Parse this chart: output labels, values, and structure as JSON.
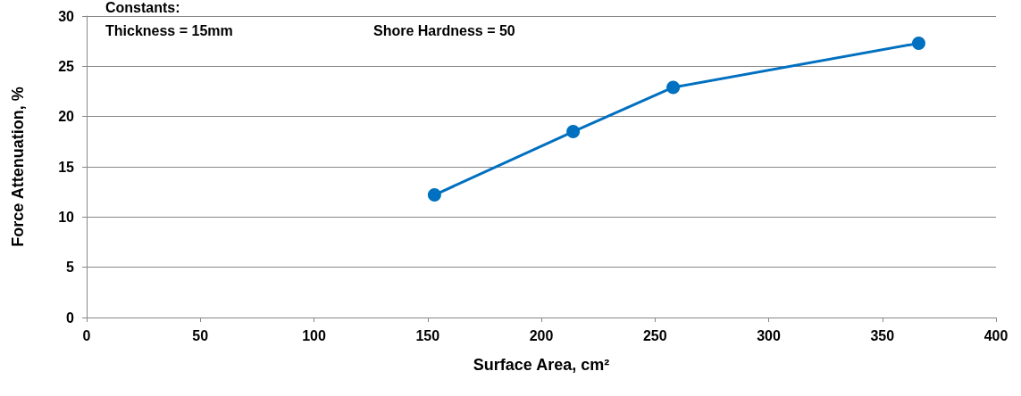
{
  "chart_data": {
    "type": "line",
    "xlabel": "Surface Area, cm²",
    "ylabel": "Force Attenuation, %",
    "annotations": [
      "Constants:",
      "Thickness = 15mm",
      "Shore Hardness = 50"
    ],
    "x": [
      153,
      214,
      258,
      366
    ],
    "series": [
      {
        "color": "#0070c0",
        "values": [
          12.2,
          18.5,
          22.9,
          27.3
        ]
      }
    ],
    "xlim": [
      0,
      400
    ],
    "xticks": [
      0,
      50,
      100,
      150,
      200,
      250,
      300,
      350,
      400
    ],
    "ylim": [
      0,
      30
    ],
    "yticks": [
      0,
      5,
      10,
      15,
      20,
      25,
      30
    ],
    "grid": "y",
    "marker": "circle",
    "line_style": "solid"
  }
}
